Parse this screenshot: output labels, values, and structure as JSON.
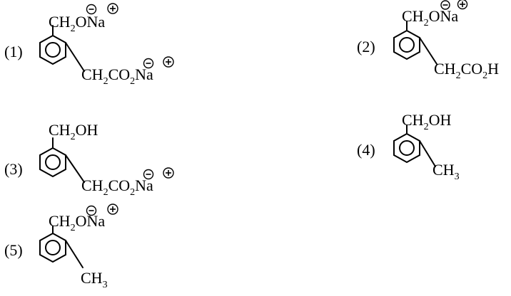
{
  "compounds": [
    {
      "number": "(1)",
      "top_group": {
        "g1": "CH",
        "s1": "2",
        "g2": "ONa"
      },
      "top_charges": [
        "−",
        "+"
      ],
      "side_group": {
        "g1": "CH",
        "s1": "2",
        "g2": "CO",
        "s2": "2",
        "g3": "Na"
      },
      "side_charges": [
        "−",
        "+"
      ]
    },
    {
      "number": "(2)",
      "top_group": {
        "g1": "CH",
        "s1": "2",
        "g2": "ONa"
      },
      "top_charges": [
        "−",
        "+"
      ],
      "side_group": {
        "g1": "CH",
        "s1": "2",
        "g2": "CO",
        "s2": "2",
        "g3": "H"
      }
    },
    {
      "number": "(3)",
      "top_group": {
        "g1": "CH",
        "s1": "2",
        "g2": "OH"
      },
      "side_group": {
        "g1": "CH",
        "s1": "2",
        "g2": "CO",
        "s2": "2",
        "g3": "Na"
      },
      "side_charges": [
        "−",
        "+"
      ]
    },
    {
      "number": "(4)",
      "top_group": {
        "g1": "CH",
        "s1": "2",
        "g2": "OH"
      },
      "side_group": {
        "g1": "CH",
        "s1": "3"
      }
    },
    {
      "number": "(5)",
      "top_group": {
        "g1": "CH",
        "s1": "2",
        "g2": "ONa"
      },
      "top_charges": [
        "−",
        "+"
      ],
      "side_group": {
        "g1": "CH",
        "s1": "3"
      }
    }
  ]
}
